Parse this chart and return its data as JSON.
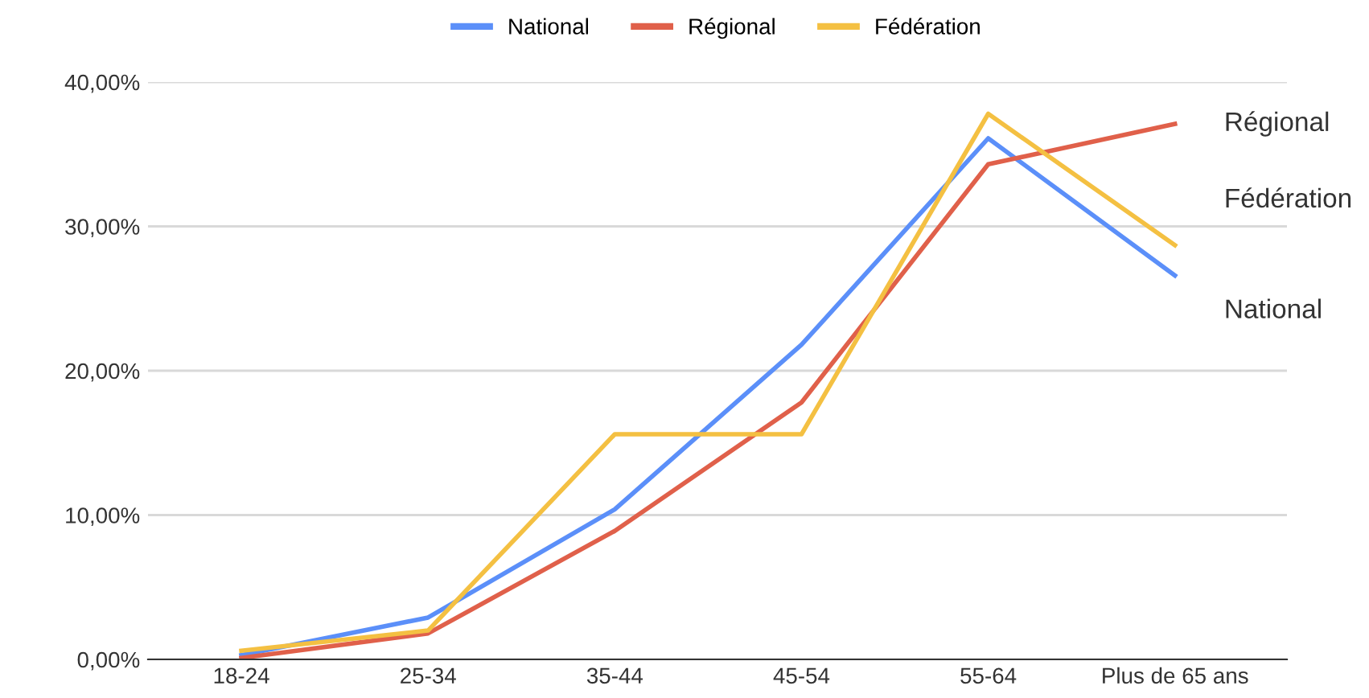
{
  "chart_data": {
    "type": "line",
    "categories": [
      "18-24",
      "25-34",
      "35-44",
      "45-54",
      "55-64",
      "Plus de 65 ans"
    ],
    "series": [
      {
        "name": "National",
        "color": "#5b8ff9",
        "values": [
          0.3,
          2.9,
          10.4,
          21.8,
          36.1,
          26.6
        ]
      },
      {
        "name": "Régional",
        "color": "#e0604a",
        "values": [
          0.1,
          1.8,
          8.9,
          17.8,
          34.3,
          37.1
        ]
      },
      {
        "name": "Fédération",
        "color": "#f4c042",
        "values": [
          0.6,
          2.0,
          15.6,
          15.6,
          37.8,
          28.7
        ]
      }
    ],
    "ylim": [
      0,
      40
    ],
    "yticks": [
      {
        "value": 0,
        "label": "0,00%"
      },
      {
        "value": 10,
        "label": "10,00%"
      },
      {
        "value": 20,
        "label": "20,00%"
      },
      {
        "value": 30,
        "label": "30,00%"
      },
      {
        "value": 40,
        "label": "40,00%"
      }
    ],
    "grid": "y",
    "legend": "top",
    "marker": "none",
    "line_style": "solid"
  }
}
